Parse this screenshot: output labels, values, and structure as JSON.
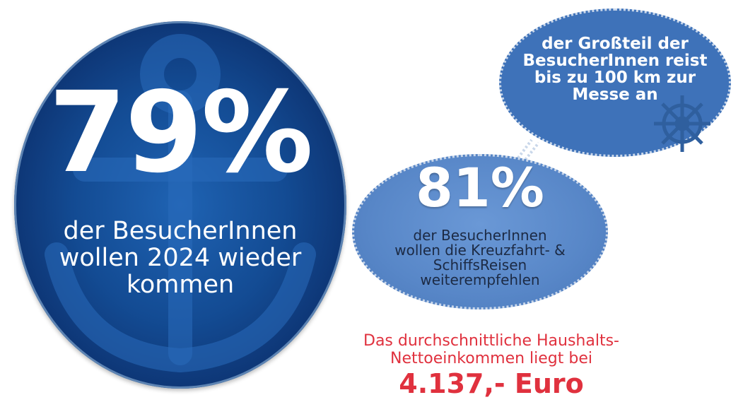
{
  "big_stat": {
    "percent": "79%",
    "lines": [
      "der BesucherInnen",
      "wollen 2024 wieder",
      "kommen"
    ]
  },
  "bubble": {
    "lines": [
      "der Großteil der",
      "BesucherInnen reist",
      "bis zu 100 km zur",
      "Messe an"
    ],
    "icon": "ship-wheel-icon"
  },
  "mid_stat": {
    "percent": "81%",
    "lines": [
      "der BesucherInnen",
      "wollen die Kreuzfahrt- &",
      "SchiffsReisen",
      "weiterempfehlen"
    ]
  },
  "income": {
    "lines": [
      "Das durchschnittliche Haushalts-",
      "Nettoeinkommen liegt bei"
    ],
    "amount": "4.137,- Euro"
  },
  "colors": {
    "dark_blue": "#134b93",
    "light_blue": "#5887c8",
    "bubble_blue": "#3e72b9",
    "red": "#e0313e"
  }
}
